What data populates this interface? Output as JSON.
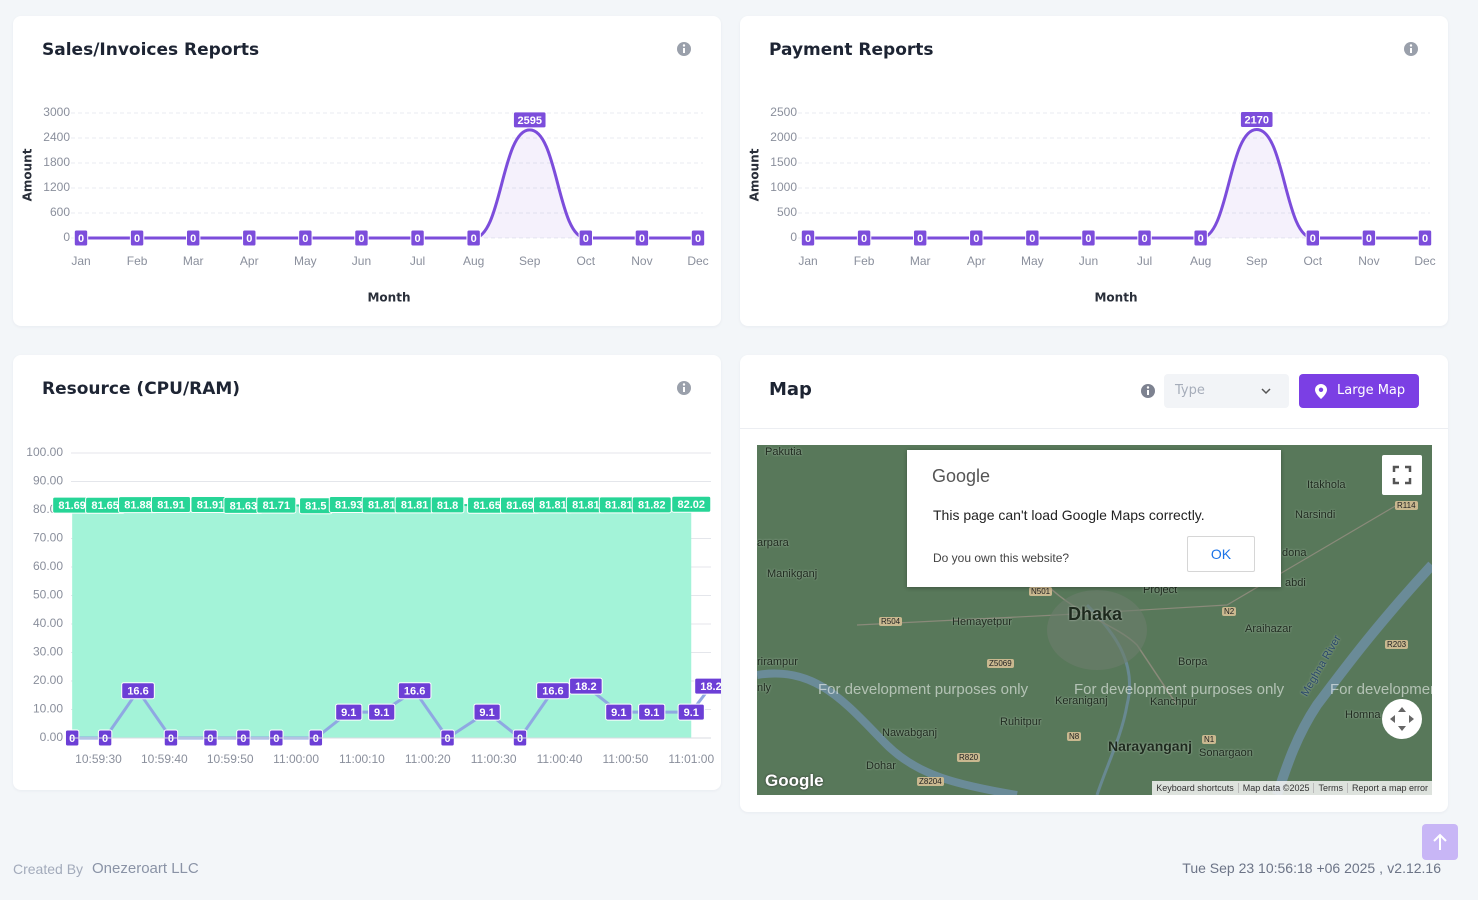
{
  "chart_data": [
    {
      "type": "area",
      "title": "Sales/Invoices Reports",
      "categories": [
        "Jan",
        "Feb",
        "Mar",
        "Apr",
        "May",
        "Jun",
        "Jul",
        "Aug",
        "Sep",
        "Oct",
        "Nov",
        "Dec"
      ],
      "values": [
        0,
        0,
        0,
        0,
        0,
        0,
        0,
        0,
        2595,
        0,
        0,
        0
      ],
      "color": "#7c4ddb",
      "ylim": [
        0,
        3000
      ],
      "yticks": [
        0,
        600,
        1200,
        1800,
        2400,
        3000
      ],
      "y_label": "Amount",
      "x_label": "Month",
      "grid": true
    },
    {
      "type": "area",
      "title": "Payment Reports",
      "categories": [
        "Jan",
        "Feb",
        "Mar",
        "Apr",
        "May",
        "Jun",
        "Jul",
        "Aug",
        "Sep",
        "Oct",
        "Nov",
        "Dec"
      ],
      "values": [
        0,
        0,
        0,
        0,
        0,
        0,
        0,
        0,
        2170,
        0,
        0,
        0
      ],
      "color": "#7c4ddb",
      "ylim": [
        0,
        2500
      ],
      "yticks": [
        0,
        500,
        1000,
        1500,
        2000,
        2500
      ],
      "y_label": "Amount",
      "x_label": "Month",
      "grid": true
    },
    {
      "type": "time-line",
      "title": "Resource (CPU/RAM)",
      "x": [
        "10:59:26",
        "10:59:31",
        "10:59:36",
        "10:59:41",
        "10:59:47",
        "10:59:52",
        "10:59:57",
        "11:00:03",
        "11:00:08",
        "11:00:13",
        "11:00:18",
        "11:00:23",
        "11:00:29",
        "11:00:34",
        "11:00:39",
        "11:00:44",
        "11:00:49",
        "11:00:54",
        "11:01:00",
        "11:01:03"
      ],
      "xlim": [
        "10:59:24",
        "11:01:03"
      ],
      "xticks": [
        "10:59:30",
        "10:59:40",
        "10:59:50",
        "11:00:00",
        "11:00:10",
        "11:00:20",
        "11:00:30",
        "11:00:40",
        "11:00:50",
        "11:01:00"
      ],
      "ylim": [
        0,
        100
      ],
      "yticks": [
        {
          "value": 0,
          "label": "0.00"
        },
        {
          "value": 10,
          "label": "10.00"
        },
        {
          "value": 20,
          "label": "20.00"
        },
        {
          "value": 30,
          "label": "30.00"
        },
        {
          "value": 40,
          "label": "40.00"
        },
        {
          "value": 50,
          "label": "50.00"
        },
        {
          "value": 60,
          "label": "60.00"
        },
        {
          "value": 70,
          "label": "70.00"
        },
        {
          "value": 80,
          "label": "80.00"
        },
        {
          "value": 90,
          "label": "90.00"
        },
        {
          "value": 100,
          "label": "100.00"
        }
      ],
      "grid": true,
      "series": [
        {
          "color": "#27d597",
          "fill": "#a3f3d8",
          "values": [
            81.69,
            81.65,
            81.88,
            81.91,
            81.91,
            81.63,
            81.71,
            81.5,
            81.93,
            81.81,
            81.81,
            81.8,
            81.65,
            81.69,
            81.81,
            81.81,
            81.81,
            81.82,
            82.02,
            null
          ]
        },
        {
          "color": "#8fa8e2",
          "label_color": "#6c3fd6",
          "values": [
            0,
            0,
            16.6,
            0,
            0,
            0,
            0,
            0,
            9.1,
            9.1,
            16.6,
            0,
            9.1,
            0,
            16.6,
            18.2,
            9.1,
            9.1,
            9.1,
            18.2
          ]
        }
      ]
    }
  ],
  "map": {
    "title": "Map",
    "type_placeholder": "Type",
    "button": "Large Map",
    "dialog": {
      "brand": "Google",
      "message": "This page can't load Google Maps correctly.",
      "question": "Do you own this website?",
      "ok": "OK"
    },
    "places": [
      "Pakutia",
      "Itakhola",
      "Narsindi",
      "arpara",
      "Manikganj",
      "Project",
      "Dhaka",
      "Hemayetpur",
      "Araihazar",
      "dona",
      "abdi",
      "rirampur",
      "Borpa",
      "Keraniganj",
      "Kanchpur",
      "Meghna River",
      "Homna",
      "Ruhitpur",
      "Nawabganj",
      "Narayanganj",
      "Sonargaon",
      "Dohar",
      "nly"
    ],
    "roads": [
      "R114",
      "R504",
      "N501",
      "Z5069",
      "N2",
      "R203",
      "N8",
      "R820",
      "Z8204",
      "N1"
    ],
    "watermarks": [
      "For development purposes only",
      "For development purposes only",
      "For development purposes only"
    ],
    "logo": "Google",
    "attribution": [
      "Keyboard shortcuts",
      "Map data ©2025",
      "Terms",
      "Report a map error"
    ]
  },
  "footer": {
    "created_by": "Created By",
    "company": "Onezeroart LLC",
    "timestamp": "Tue Sep 23 10:56:18 +06 2025 ,",
    "version": "v2.12.16"
  }
}
